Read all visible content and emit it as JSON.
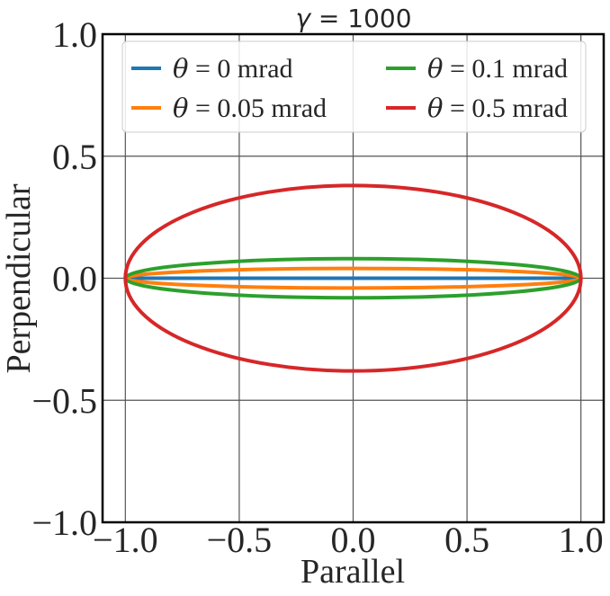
{
  "chart_data": {
    "type": "line",
    "title": "γ = 1000",
    "title_parts": {
      "symbol": "γ",
      "rest": " = 1000"
    },
    "xlabel": "Parallel",
    "ylabel": "Perpendicular",
    "xlim": [
      -1.1,
      1.1
    ],
    "ylim": [
      -1.0,
      1.0
    ],
    "xticks": [
      -1.0,
      -0.5,
      0.0,
      0.5,
      1.0
    ],
    "yticks": [
      -1.0,
      -0.5,
      0.0,
      0.5,
      1.0
    ],
    "xtick_labels": [
      "−1.0",
      "−0.5",
      "0.0",
      "0.5",
      "1.0"
    ],
    "ytick_labels": [
      "−1.0",
      "−0.5",
      "0.0",
      "0.5",
      "1.0"
    ],
    "grid": true,
    "legend_placement": "top",
    "legend_columns": 2,
    "series": [
      {
        "name": "θ = 0 mrad",
        "symbol": "θ",
        "label_rest": " = 0 mrad",
        "color": "#1f77b4",
        "shape": "ellipse",
        "semi_major": 1.0,
        "semi_minor": 0.0
      },
      {
        "name": "θ = 0.05 mrad",
        "symbol": "θ",
        "label_rest": " = 0.05 mrad",
        "color": "#ff7f0e",
        "shape": "ellipse",
        "semi_major": 1.0,
        "semi_minor": 0.04
      },
      {
        "name": "θ = 0.1 mrad",
        "symbol": "θ",
        "label_rest": " = 0.1 mrad",
        "color": "#2ca02c",
        "shape": "ellipse",
        "semi_major": 1.0,
        "semi_minor": 0.08
      },
      {
        "name": "θ = 0.5 mrad",
        "symbol": "θ",
        "label_rest": " = 0.5 mrad",
        "color": "#d62728",
        "shape": "ellipse",
        "semi_major": 1.0,
        "semi_minor": 0.38
      }
    ]
  }
}
